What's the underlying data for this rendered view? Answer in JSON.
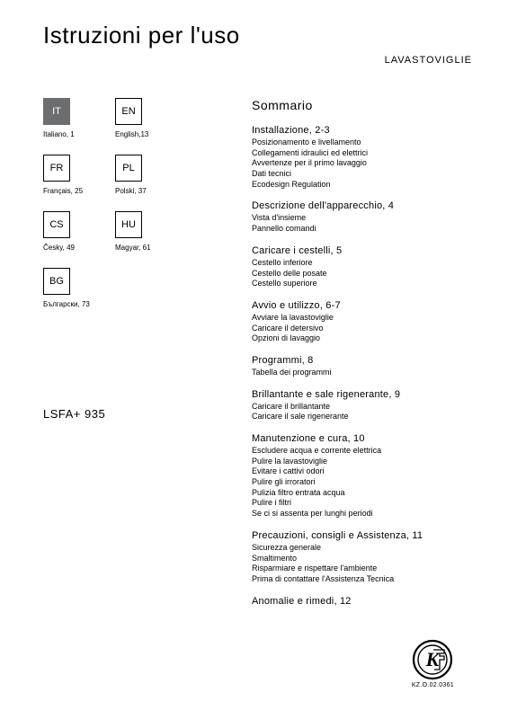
{
  "title": "Istruzioni per l'uso",
  "product_type": "LAVASTOVIGLIE",
  "model": "LSFA+ 935",
  "languages": [
    {
      "code": "IT",
      "label": "Italiano, 1",
      "active": true
    },
    {
      "code": "EN",
      "label": "English,13",
      "active": false
    },
    {
      "code": "FR",
      "label": "Français, 25",
      "active": false
    },
    {
      "code": "PL",
      "label": "Polski, 37",
      "active": false
    },
    {
      "code": "CS",
      "label": "Česky, 49",
      "active": false
    },
    {
      "code": "HU",
      "label": "Magyar, 61",
      "active": false
    },
    {
      "code": "BG",
      "label": "Български, 73",
      "active": false
    }
  ],
  "summary_title": "Sommario",
  "sections": [
    {
      "head": "Installazione, 2-3",
      "subs": [
        "Posizionamento e livellamento",
        "Collegamenti idraulici ed elettrici",
        "Avvertenze per il primo lavaggio",
        "Dati tecnici",
        "Ecodesign Regulation"
      ]
    },
    {
      "head": "Descrizione dell'apparecchio, 4",
      "subs": [
        "Vista d'insieme",
        "Pannello comandi"
      ]
    },
    {
      "head": "Caricare i cestelli, 5",
      "subs": [
        "Cestello inferiore",
        "Cestello delle posate",
        "Cestello superiore"
      ]
    },
    {
      "head": "Avvio e utilizzo, 6-7",
      "subs": [
        "Avviare la lavastoviglie",
        "Caricare il detersivo",
        "Opzioni di lavaggio"
      ]
    },
    {
      "head": "Programmi, 8",
      "subs": [
        "Tabella dei programmi"
      ]
    },
    {
      "head": "Brillantante e sale rigenerante, 9",
      "subs": [
        "Caricare il brillantante",
        "Caricare il sale rigenerante"
      ]
    },
    {
      "head": "Manutenzione e cura, 10",
      "subs": [
        "Escludere acqua e corrente elettrica",
        "Pulire la lavastoviglie",
        "Evitare i cattivi odori",
        "Pulire gli irroratori",
        "Pulizia filtro entrata acqua",
        "Pulire i filtri",
        "Se ci si assenta per lunghi periodi"
      ]
    },
    {
      "head": "Precauzioni, consigli e Assistenza, 11",
      "subs": [
        "Sicurezza generale",
        "Smaltimento",
        "Risparmiare e rispettare l'ambiente",
        "Prima di contattare l'Assistenza Tecnica"
      ]
    },
    {
      "head": "Anomalie e rimedi, 12",
      "subs": []
    }
  ],
  "cert_label": "KZ.O.02.0361"
}
